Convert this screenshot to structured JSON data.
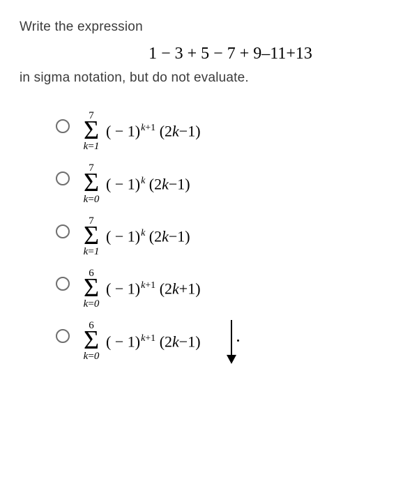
{
  "prompt_line1": "Write the expression",
  "series": "1 − 3 + 5 − 7 + 9–11+13",
  "prompt_line2": "in sigma notation, but do not evaluate.",
  "options": [
    {
      "upper": "7",
      "lower_var": "k",
      "lower_val": "1",
      "expr_html": "( − 1)<sup><i>k</i>+1</sup> (2<i>k</i>−1)"
    },
    {
      "upper": "7",
      "lower_var": "k",
      "lower_val": "0",
      "expr_html": "( − 1)<sup><i>k</i></sup> (2<i>k</i>−1)"
    },
    {
      "upper": "7",
      "lower_var": "k",
      "lower_val": "1",
      "expr_html": "( − 1)<sup><i>k</i></sup> (2<i>k</i>−1)"
    },
    {
      "upper": "6",
      "lower_var": "k",
      "lower_val": "0",
      "expr_html": "( − 1)<sup><i>k</i>+1</sup> (2<i>k</i>+1)"
    },
    {
      "upper": "6",
      "lower_var": "k",
      "lower_val": "0",
      "expr_html": "( − 1)<sup><i>k</i>+1</sup> (2<i>k</i>−1)"
    }
  ],
  "style": {
    "prompt_color": "#3b3b3b",
    "math_color": "#000000",
    "radio_border": "#6f6f6f",
    "background": "#ffffff",
    "prompt_fontsize": 19,
    "series_fontsize": 24,
    "sigma_fontsize": 38,
    "expr_fontsize": 22,
    "limit_fontsize": 15
  }
}
